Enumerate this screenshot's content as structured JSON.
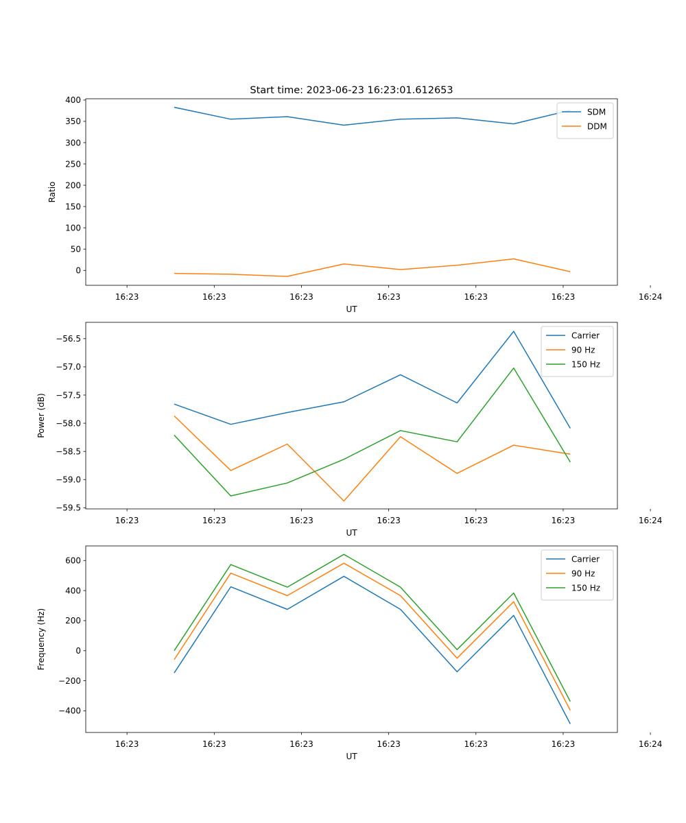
{
  "figure": {
    "title": "Start time: 2023-06-23 16:23:01.612653"
  },
  "chart_data": [
    {
      "type": "line",
      "xlabel": "UT",
      "ylabel": "Ratio",
      "x": [
        0.4,
        0.88,
        1.36,
        1.84,
        2.32,
        2.8,
        3.28,
        3.76
      ],
      "xlim": [
        -0.35,
        4.16
      ],
      "x_ticks": [
        0.0,
        0.74,
        1.48,
        2.22,
        2.96,
        3.7,
        4.44
      ],
      "x_tick_labels": [
        "16:23",
        "16:23",
        "16:23",
        "16:23",
        "16:23",
        "16:23",
        "16:24"
      ],
      "ylim": [
        -35,
        403
      ],
      "y_ticks": [
        0,
        50,
        100,
        150,
        200,
        250,
        300,
        350,
        400
      ],
      "y_tick_labels": [
        "0",
        "50",
        "100",
        "150",
        "200",
        "250",
        "300",
        "350",
        "400"
      ],
      "legend": "top-right",
      "series": [
        {
          "name": "SDM",
          "color": "#1f77b4",
          "values": [
            383,
            355,
            361,
            341,
            355,
            358,
            344,
            376
          ]
        },
        {
          "name": "DDM",
          "color": "#ff7f0e",
          "values": [
            -7,
            -9,
            -14,
            15,
            2,
            12,
            27,
            -3
          ]
        }
      ]
    },
    {
      "type": "line",
      "xlabel": "UT",
      "ylabel": "Power (dB)",
      "x": [
        0.4,
        0.88,
        1.36,
        1.84,
        2.32,
        2.8,
        3.28,
        3.76
      ],
      "xlim": [
        -0.35,
        4.16
      ],
      "x_ticks": [
        0.0,
        0.74,
        1.48,
        2.22,
        2.96,
        3.7,
        4.44
      ],
      "x_tick_labels": [
        "16:23",
        "16:23",
        "16:23",
        "16:23",
        "16:23",
        "16:23",
        "16:24"
      ],
      "ylim": [
        -59.52,
        -56.21
      ],
      "y_ticks": [
        -59.5,
        -59.0,
        -58.5,
        -58.0,
        -57.5,
        -57.0,
        -56.5
      ],
      "y_tick_labels": [
        "−59.5",
        "−59.0",
        "−58.5",
        "−58.0",
        "−57.5",
        "−57.0",
        "−56.5"
      ],
      "legend": "top-right",
      "series": [
        {
          "name": "Carrier",
          "color": "#1f77b4",
          "values": [
            -57.66,
            -58.02,
            -57.81,
            -57.62,
            -57.14,
            -57.64,
            -56.37,
            -58.09
          ]
        },
        {
          "name": "90 Hz",
          "color": "#ff7f0e",
          "values": [
            -57.87,
            -58.84,
            -58.37,
            -59.38,
            -58.24,
            -58.89,
            -58.39,
            -58.55
          ]
        },
        {
          "name": "150 Hz",
          "color": "#2ca02c",
          "values": [
            -58.21,
            -59.29,
            -59.06,
            -58.64,
            -58.13,
            -58.33,
            -57.02,
            -58.69
          ]
        }
      ]
    },
    {
      "type": "line",
      "xlabel": "UT",
      "ylabel": "Frequency (Hz)",
      "x": [
        0.4,
        0.88,
        1.36,
        1.84,
        2.32,
        2.8,
        3.28,
        3.76
      ],
      "xlim": [
        -0.35,
        4.16
      ],
      "x_ticks": [
        0.0,
        0.74,
        1.48,
        2.22,
        2.96,
        3.7,
        4.44
      ],
      "x_tick_labels": [
        "16:23",
        "16:23",
        "16:23",
        "16:23",
        "16:23",
        "16:23",
        "16:24"
      ],
      "ylim": [
        -544,
        697
      ],
      "y_ticks": [
        -400,
        -200,
        0,
        200,
        400,
        600
      ],
      "y_tick_labels": [
        "−400",
        "−200",
        "0",
        "200",
        "400",
        "600"
      ],
      "legend": "top-right",
      "series": [
        {
          "name": "Carrier",
          "color": "#1f77b4",
          "values": [
            -148,
            425,
            275,
            495,
            275,
            -140,
            235,
            -487
          ]
        },
        {
          "name": "90 Hz",
          "color": "#ff7f0e",
          "values": [
            -60,
            516,
            366,
            582,
            366,
            -50,
            326,
            -396
          ]
        },
        {
          "name": "150 Hz",
          "color": "#2ca02c",
          "values": [
            0,
            573,
            423,
            641,
            423,
            7,
            384,
            -338
          ]
        }
      ]
    }
  ]
}
